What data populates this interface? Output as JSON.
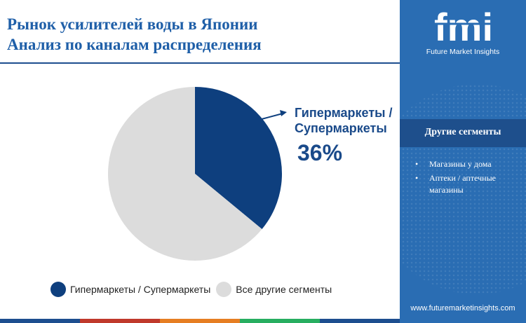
{
  "header": {
    "title_line1": "Рынок усилителей воды в Японии",
    "title_line2": "Анализ по каналам распределения"
  },
  "chart_data": {
    "type": "pie",
    "title": "",
    "slices": [
      {
        "label": "Гипермаркеты / Супермаркеты",
        "value": 36,
        "color": "#0e3f7e"
      },
      {
        "label": "Все другие сегменты",
        "value": 64,
        "color": "#dcdcdc"
      }
    ],
    "legend": {
      "placement": "bottom"
    }
  },
  "callout": {
    "label_line1": "Гипермаркеты /",
    "label_line2": "Супермаркеты",
    "value": "36%"
  },
  "legend": {
    "item1": "Гипермаркеты / Супермаркеты",
    "item2": "Все другие сегменты"
  },
  "sidebar": {
    "logo_text": "fmi",
    "logo_subtitle": "Future Market Insights",
    "heading": "Другие сегменты",
    "items": [
      "Магазины у дома",
      "Аптеки / аптечные магазины"
    ],
    "url": "www.futuremarketinsights.com"
  },
  "colors": {
    "accent": "#1f5fa8",
    "dark_blue": "#0e3f7e",
    "grey": "#dcdcdc",
    "sidebar": "#2a6db3",
    "strip": [
      "#1d4e8f",
      "#c0392b",
      "#e67e22",
      "#27ae60",
      "#1d4e8f"
    ]
  }
}
